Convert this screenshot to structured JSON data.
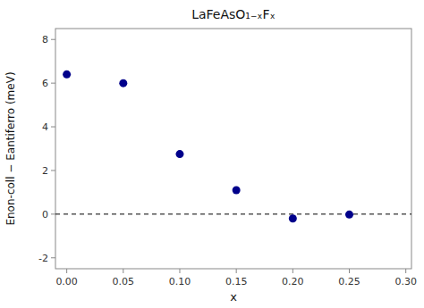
{
  "chart_data": {
    "type": "scatter",
    "title": "LaFeAsO₁₋ₓFₓ",
    "xlabel": "x",
    "ylabel": "Enon-coll − Eantiferro (meV)",
    "x": [
      0.0,
      0.05,
      0.1,
      0.15,
      0.2,
      0.25
    ],
    "values": [
      6.4,
      6.0,
      2.75,
      1.1,
      -0.2,
      -0.02
    ],
    "color": "#00008B",
    "hline": 0,
    "xlim": [
      -0.01,
      0.305
    ],
    "ylim": [
      -2.5,
      8.5
    ],
    "xticks": [
      {
        "value": 0.0,
        "label": "0.00"
      },
      0.05,
      {
        "value": 0.1,
        "label": "0.10"
      },
      0.15,
      {
        "value": 0.2,
        "label": "0.20"
      },
      0.25,
      {
        "value": 0.3,
        "label": "0.30"
      }
    ],
    "yticks": [
      -2,
      0,
      2,
      4,
      6,
      8
    ],
    "grid": false
  }
}
